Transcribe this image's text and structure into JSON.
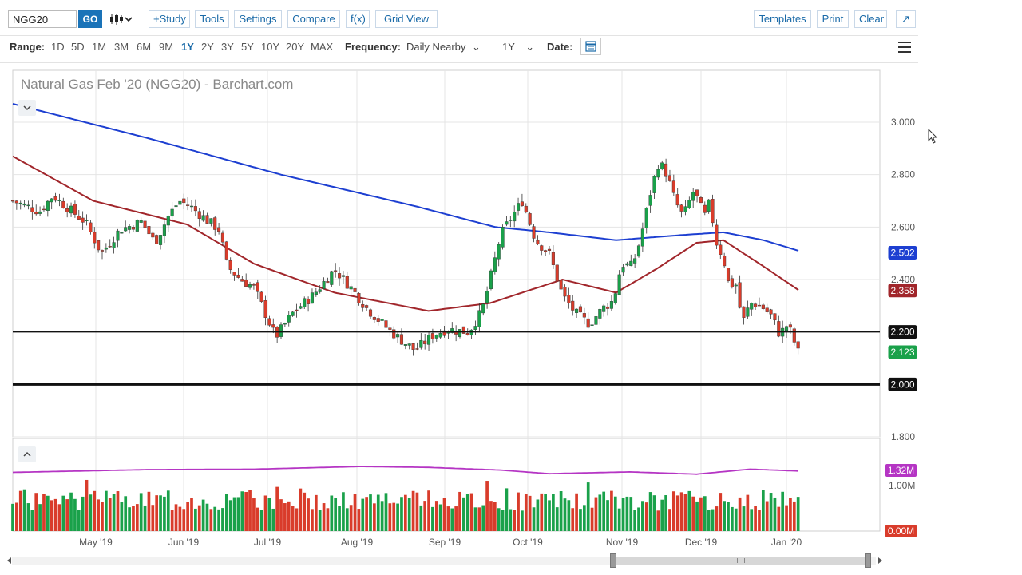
{
  "toolbar": {
    "symbol": "NGG20",
    "go_label": "GO",
    "buttons": {
      "study": "+Study",
      "tools": "Tools",
      "settings": "Settings",
      "compare": "Compare",
      "fx": "f(x)",
      "grid_view": "Grid View",
      "templates": "Templates",
      "print": "Print",
      "clear": "Clear",
      "popout": "↗"
    }
  },
  "range_bar": {
    "range_label": "Range:",
    "ranges": [
      "1D",
      "5D",
      "1M",
      "3M",
      "6M",
      "9M",
      "1Y",
      "2Y",
      "3Y",
      "5Y",
      "10Y",
      "20Y",
      "MAX"
    ],
    "active_range": "1Y",
    "frequency_label": "Frequency:",
    "frequency_value": "Daily Nearby",
    "period_value": "1Y",
    "date_label": "Date:"
  },
  "chart_data": {
    "type": "candlestick",
    "title": "Natural Gas Feb '20 (NGG20) - Barchart.com",
    "x_tick_labels": [
      "May '19",
      "Jun '19",
      "Jul '19",
      "Aug '19",
      "Sep '19",
      "Oct '19",
      "Nov '19",
      "Dec '19",
      "Jan '20"
    ],
    "price_axis": {
      "ylim": [
        1.8,
        3.0
      ],
      "tick_labels": [
        "3.000",
        "2.800",
        "2.600",
        "2.400",
        "2.200",
        "2.000",
        "1.800"
      ]
    },
    "badges": {
      "ma200": "2.502",
      "ma50": "2.358",
      "level_high": "2.200",
      "last": "2.123",
      "level_low": "2.000"
    },
    "horizontal_lines": [
      2.2,
      2.0
    ],
    "colors": {
      "up": "#1aa14a",
      "down": "#d93c2b",
      "ma200": "#1d3fd1",
      "ma50": "#a1262b",
      "volume_avg": "#b535c4"
    },
    "price_path": [
      [
        0,
        2.7
      ],
      [
        10,
        2.66
      ],
      [
        15,
        2.72
      ],
      [
        22,
        2.66
      ],
      [
        27,
        2.62
      ],
      [
        33,
        2.5
      ],
      [
        40,
        2.59
      ],
      [
        48,
        2.62
      ],
      [
        53,
        2.54
      ],
      [
        58,
        2.64
      ],
      [
        62,
        2.7
      ],
      [
        66,
        2.68
      ],
      [
        72,
        2.63
      ],
      [
        77,
        2.59
      ],
      [
        80,
        2.45
      ],
      [
        85,
        2.4
      ],
      [
        90,
        2.37
      ],
      [
        98,
        2.18
      ],
      [
        105,
        2.28
      ],
      [
        112,
        2.34
      ],
      [
        120,
        2.44
      ],
      [
        126,
        2.37
      ],
      [
        132,
        2.29
      ],
      [
        140,
        2.21
      ],
      [
        146,
        2.16
      ],
      [
        150,
        2.13
      ],
      [
        157,
        2.19
      ],
      [
        162,
        2.21
      ],
      [
        170,
        2.2
      ],
      [
        175,
        2.28
      ],
      [
        178,
        2.4
      ],
      [
        182,
        2.57
      ],
      [
        186,
        2.64
      ],
      [
        190,
        2.7
      ],
      [
        195,
        2.55
      ],
      [
        200,
        2.5
      ],
      [
        205,
        2.34
      ],
      [
        210,
        2.27
      ],
      [
        215,
        2.23
      ],
      [
        220,
        2.29
      ],
      [
        224,
        2.32
      ],
      [
        227,
        2.46
      ],
      [
        231,
        2.45
      ],
      [
        234,
        2.55
      ],
      [
        238,
        2.74
      ],
      [
        241,
        2.85
      ],
      [
        244,
        2.8
      ],
      [
        247,
        2.7
      ],
      [
        250,
        2.64
      ],
      [
        254,
        2.74
      ],
      [
        258,
        2.64
      ],
      [
        260,
        2.7
      ],
      [
        262,
        2.55
      ],
      [
        265,
        2.48
      ],
      [
        267,
        2.38
      ],
      [
        270,
        2.38
      ],
      [
        272,
        2.23
      ],
      [
        275,
        2.31
      ],
      [
        279,
        2.3
      ],
      [
        283,
        2.26
      ],
      [
        286,
        2.19
      ],
      [
        289,
        2.23
      ],
      [
        293,
        2.12
      ]
    ],
    "ma200_path": [
      [
        0,
        3.07
      ],
      [
        50,
        2.94
      ],
      [
        100,
        2.8
      ],
      [
        150,
        2.68
      ],
      [
        180,
        2.6
      ],
      [
        200,
        2.58
      ],
      [
        225,
        2.55
      ],
      [
        250,
        2.57
      ],
      [
        265,
        2.58
      ],
      [
        280,
        2.55
      ],
      [
        293,
        2.51
      ]
    ],
    "ma50_path": [
      [
        0,
        2.87
      ],
      [
        30,
        2.7
      ],
      [
        65,
        2.61
      ],
      [
        90,
        2.46
      ],
      [
        120,
        2.35
      ],
      [
        155,
        2.28
      ],
      [
        178,
        2.31
      ],
      [
        205,
        2.4
      ],
      [
        225,
        2.35
      ],
      [
        240,
        2.44
      ],
      [
        255,
        2.54
      ],
      [
        265,
        2.55
      ],
      [
        280,
        2.45
      ],
      [
        293,
        2.36
      ]
    ],
    "volume": {
      "badges": {
        "avg": "1.32M",
        "mid": "1.00M",
        "low": "0.00M"
      },
      "tick_labels": [
        "1.00M",
        "0.00M"
      ],
      "avg_path": [
        [
          0,
          1.29
        ],
        [
          50,
          1.35
        ],
        [
          90,
          1.36
        ],
        [
          130,
          1.42
        ],
        [
          155,
          1.4
        ],
        [
          182,
          1.34
        ],
        [
          200,
          1.26
        ],
        [
          230,
          1.3
        ],
        [
          255,
          1.25
        ],
        [
          275,
          1.36
        ],
        [
          293,
          1.32
        ]
      ]
    }
  }
}
